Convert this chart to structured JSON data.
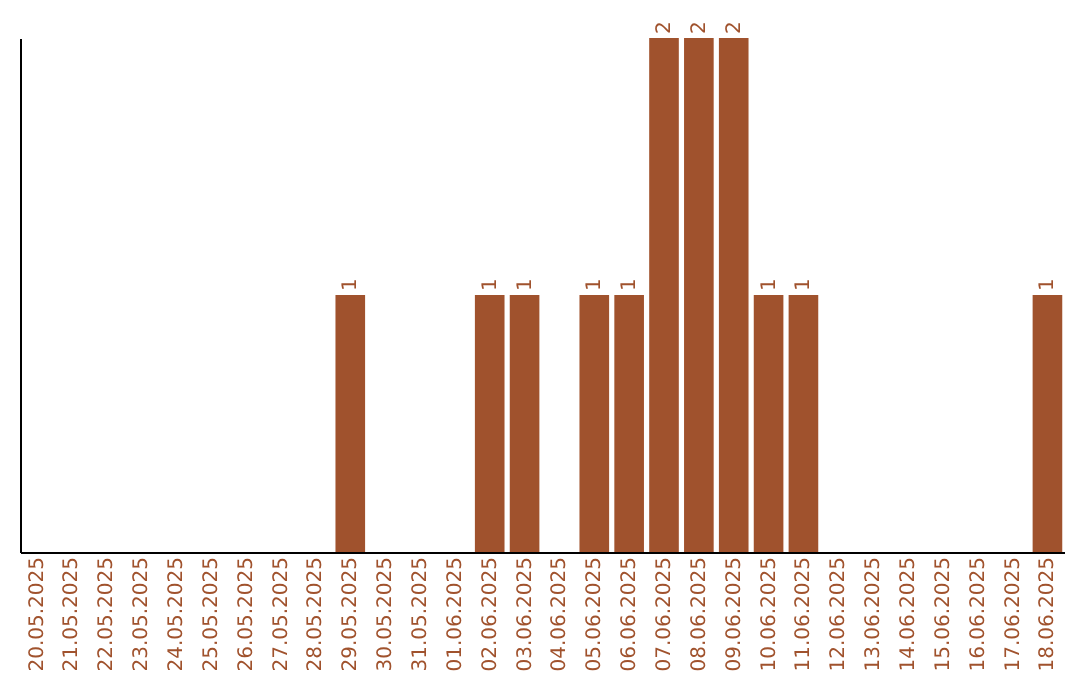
{
  "chart_data": {
    "type": "bar",
    "categories": [
      "20.05.2025",
      "21.05.2025",
      "22.05.2025",
      "23.05.2025",
      "24.05.2025",
      "25.05.2025",
      "26.05.2025",
      "27.05.2025",
      "28.05.2025",
      "29.05.2025",
      "30.05.2025",
      "31.05.2025",
      "01.06.2025",
      "02.06.2025",
      "03.06.2025",
      "04.06.2025",
      "05.06.2025",
      "06.06.2025",
      "07.06.2025",
      "08.06.2025",
      "09.06.2025",
      "10.06.2025",
      "11.06.2025",
      "12.06.2025",
      "13.06.2025",
      "14.06.2025",
      "15.06.2025",
      "16.06.2025",
      "17.06.2025",
      "18.06.2025"
    ],
    "values": [
      null,
      null,
      null,
      null,
      null,
      null,
      null,
      null,
      null,
      1,
      null,
      null,
      null,
      1,
      1,
      null,
      1,
      1,
      2,
      2,
      2,
      1,
      1,
      null,
      null,
      null,
      null,
      null,
      null,
      1
    ],
    "color": "#a0522d",
    "data_labels": true,
    "tick_labels": "x"
  }
}
